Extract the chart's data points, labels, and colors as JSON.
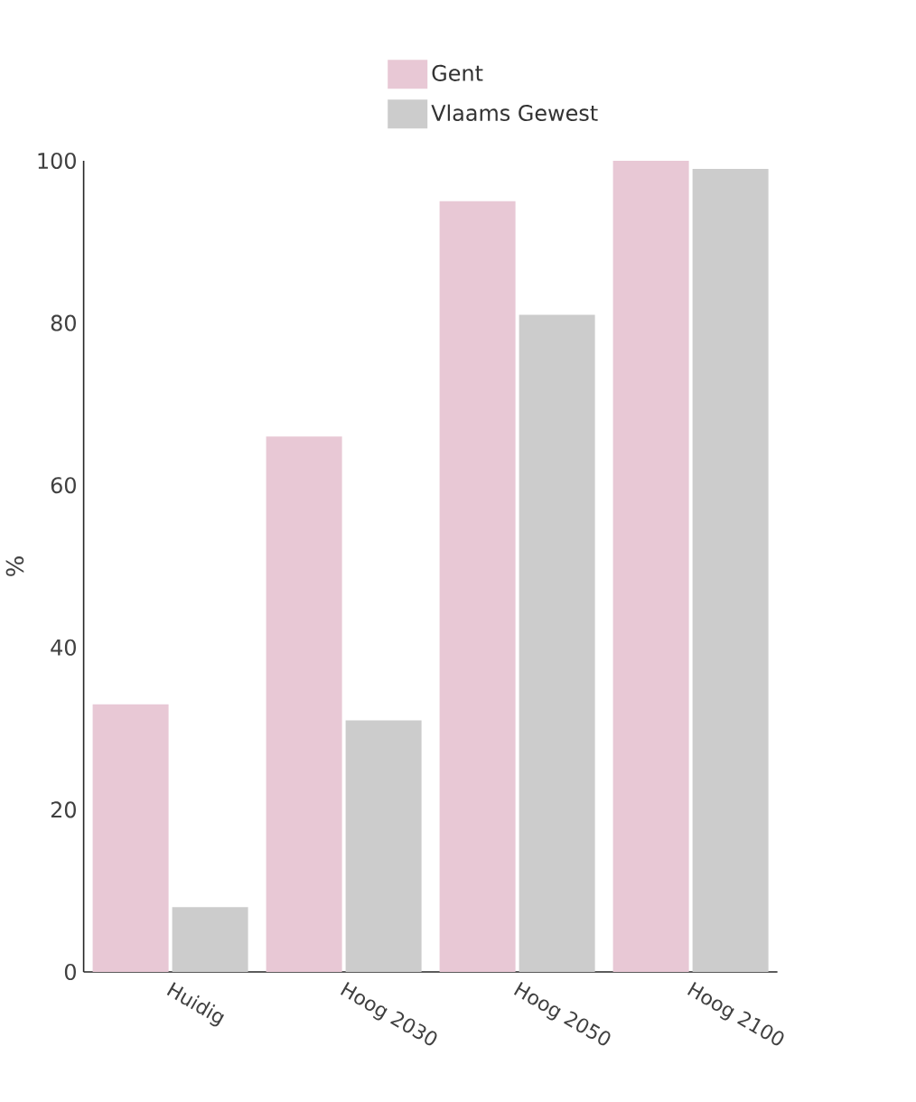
{
  "chart_data": {
    "type": "bar",
    "ylabel": "%",
    "categories": [
      "Huidig",
      "Hoog 2030",
      "Hoog 2050",
      "Hoog 2100"
    ],
    "series": [
      {
        "name": "Gent",
        "color": "#e8c8d5",
        "values": [
          33,
          66,
          95,
          100
        ]
      },
      {
        "name": "Vlaams Gewest",
        "color": "#cccccc",
        "values": [
          8,
          31,
          81,
          99
        ]
      }
    ],
    "ylim": [
      0,
      100
    ],
    "yticks": [
      0,
      20,
      40,
      60,
      80,
      100
    ],
    "grid": false,
    "legend": "top"
  }
}
